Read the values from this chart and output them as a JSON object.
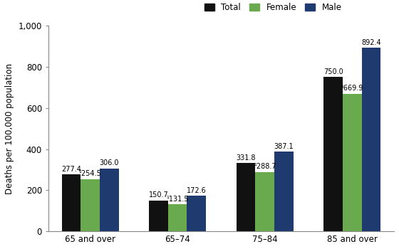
{
  "categories": [
    "65 and over",
    "65–74",
    "75–84",
    "85 and over"
  ],
  "series": {
    "Total": [
      277.4,
      150.7,
      331.8,
      750.0
    ],
    "Female": [
      254.5,
      131.5,
      288.7,
      669.9
    ],
    "Male": [
      306.0,
      172.6,
      387.1,
      892.4
    ]
  },
  "colors": {
    "Total": "#111111",
    "Female": "#6aaa4f",
    "Male": "#1f3a6e"
  },
  "ylabel": "Deaths per 100,000 population",
  "ylim": [
    0,
    1000
  ],
  "yticks": [
    0,
    200,
    400,
    600,
    800,
    1000
  ],
  "ytick_labels": [
    "0",
    "200",
    "400",
    "600",
    "800",
    "1,000"
  ],
  "legend_labels": [
    "Total",
    "Female",
    "Male"
  ],
  "bar_width": 0.25,
  "label_fontsize": 7.0,
  "axis_fontsize": 8.5,
  "legend_fontsize": 8.5,
  "background_color": "#ffffff",
  "figure_size": [
    5.6,
    3.5
  ],
  "dpi": 100,
  "footnote_symbol": "¹"
}
